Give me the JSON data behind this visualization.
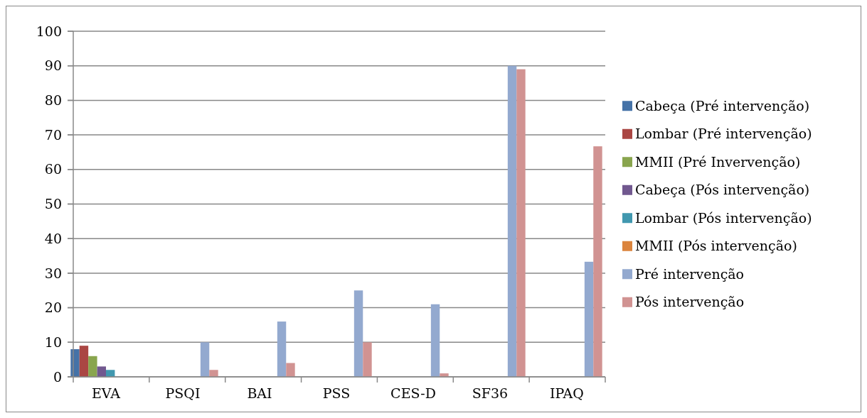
{
  "chart_data": {
    "type": "bar",
    "categories": [
      "EVA",
      "PSQI",
      "BAI",
      "PSS",
      "CES-D",
      "SF36",
      "IPAQ"
    ],
    "series": [
      {
        "name": "Cabeça (Pré intervenção)",
        "color": "#4572a7",
        "values": [
          8,
          null,
          null,
          null,
          null,
          null,
          null
        ]
      },
      {
        "name": "Lombar (Pré intervenção)",
        "color": "#aa4643",
        "values": [
          9,
          null,
          null,
          null,
          null,
          null,
          null
        ]
      },
      {
        "name": "MMII (Pré Invervenção)",
        "color": "#89a54e",
        "values": [
          6,
          null,
          null,
          null,
          null,
          null,
          null
        ]
      },
      {
        "name": "Cabeça (Pós intervenção)",
        "color": "#71588f",
        "values": [
          3,
          null,
          null,
          null,
          null,
          null,
          null
        ]
      },
      {
        "name": "Lombar (Pós intervenção)",
        "color": "#4198af",
        "values": [
          2,
          null,
          null,
          null,
          null,
          null,
          null
        ]
      },
      {
        "name": "MMII (Pós intervenção)",
        "color": "#db843d",
        "values": [
          0,
          null,
          null,
          null,
          null,
          null,
          null
        ]
      },
      {
        "name": "Pré intervenção",
        "color": "#93a9cf",
        "values": [
          null,
          10,
          16,
          25,
          21,
          90,
          33.3
        ]
      },
      {
        "name": "Pós intervenção",
        "color": "#d19392",
        "values": [
          null,
          2,
          4,
          10,
          1,
          89,
          66.7
        ]
      }
    ],
    "ylim": [
      0,
      100
    ],
    "yticks": [
      0,
      10,
      20,
      30,
      40,
      50,
      60,
      70,
      80,
      90,
      100
    ],
    "grid": "y",
    "legend": "right"
  }
}
